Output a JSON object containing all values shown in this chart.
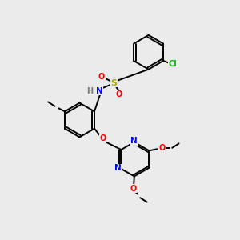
{
  "background_color": "#ebebeb",
  "atom_colors": {
    "C": "#000000",
    "N": "#0000ff",
    "O": "#ff0000",
    "S": "#aaaa00",
    "Cl": "#00bb00",
    "H": "#777777"
  },
  "bond_lw": 1.4,
  "ring_r": 0.72
}
